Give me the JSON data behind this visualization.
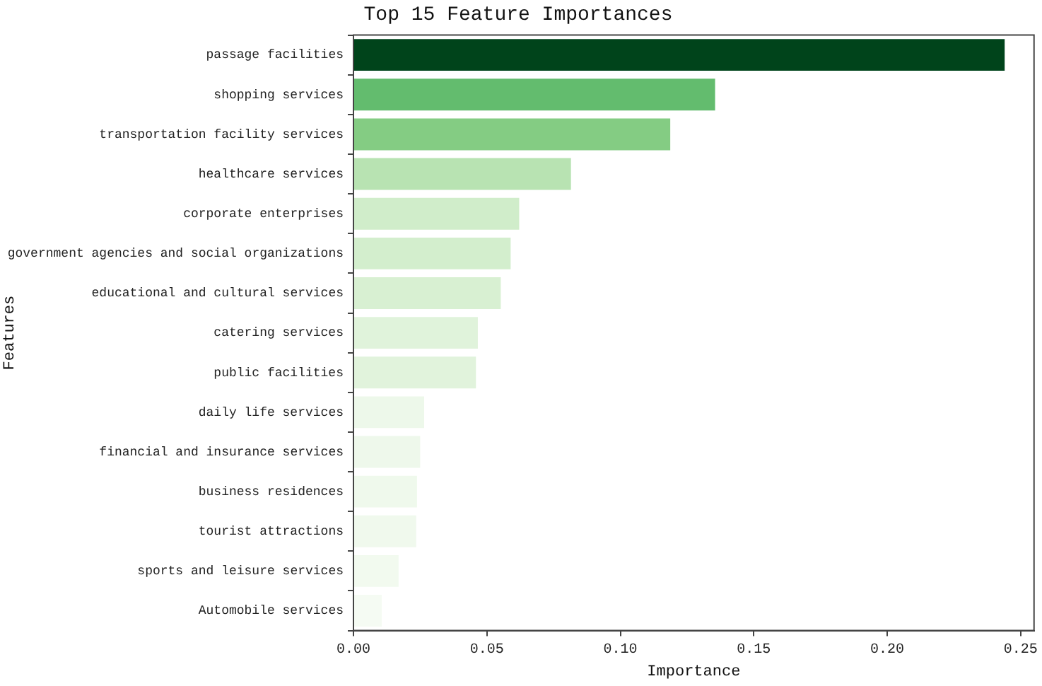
{
  "chart_data": {
    "type": "bar",
    "orientation": "horizontal",
    "title": "Top 15 Feature Importances",
    "xlabel": "Importance",
    "ylabel": "Features",
    "categories": [
      "passage facilities",
      "shopping services",
      "transportation facility services",
      "healthcare services",
      "corporate enterprises",
      "government agencies and social organizations",
      "educational and cultural services",
      "catering services",
      "public facilities",
      "daily life services",
      "financial and insurance services",
      "business residences",
      "tourist attractions",
      "sports and leisure services",
      "Automobile services"
    ],
    "values": [
      0.244,
      0.1355,
      0.1187,
      0.0815,
      0.0621,
      0.0589,
      0.0552,
      0.0466,
      0.0459,
      0.0265,
      0.025,
      0.0238,
      0.0235,
      0.0169,
      0.0106
    ],
    "colors": [
      "#00441b",
      "#63bc6e",
      "#84cc83",
      "#b8e3b2",
      "#d0edca",
      "#d3eecd",
      "#d8f0d2",
      "#e0f3db",
      "#e1f3dc",
      "#edf8ea",
      "#eef8eb",
      "#eff9ec",
      "#f0f9ed",
      "#f2faef",
      "#f5fbf3"
    ],
    "xlim": [
      0,
      0.255
    ],
    "xticks": [
      {
        "value": 0,
        "label": "0.00"
      },
      {
        "value": 0.05,
        "label": "0.05"
      },
      {
        "value": 0.1,
        "label": "0.10"
      },
      {
        "value": 0.15,
        "label": "0.15"
      },
      {
        "value": 0.2,
        "label": "0.20"
      },
      {
        "value": 0.25,
        "label": "0.25"
      }
    ],
    "grid": false,
    "legend": false
  }
}
